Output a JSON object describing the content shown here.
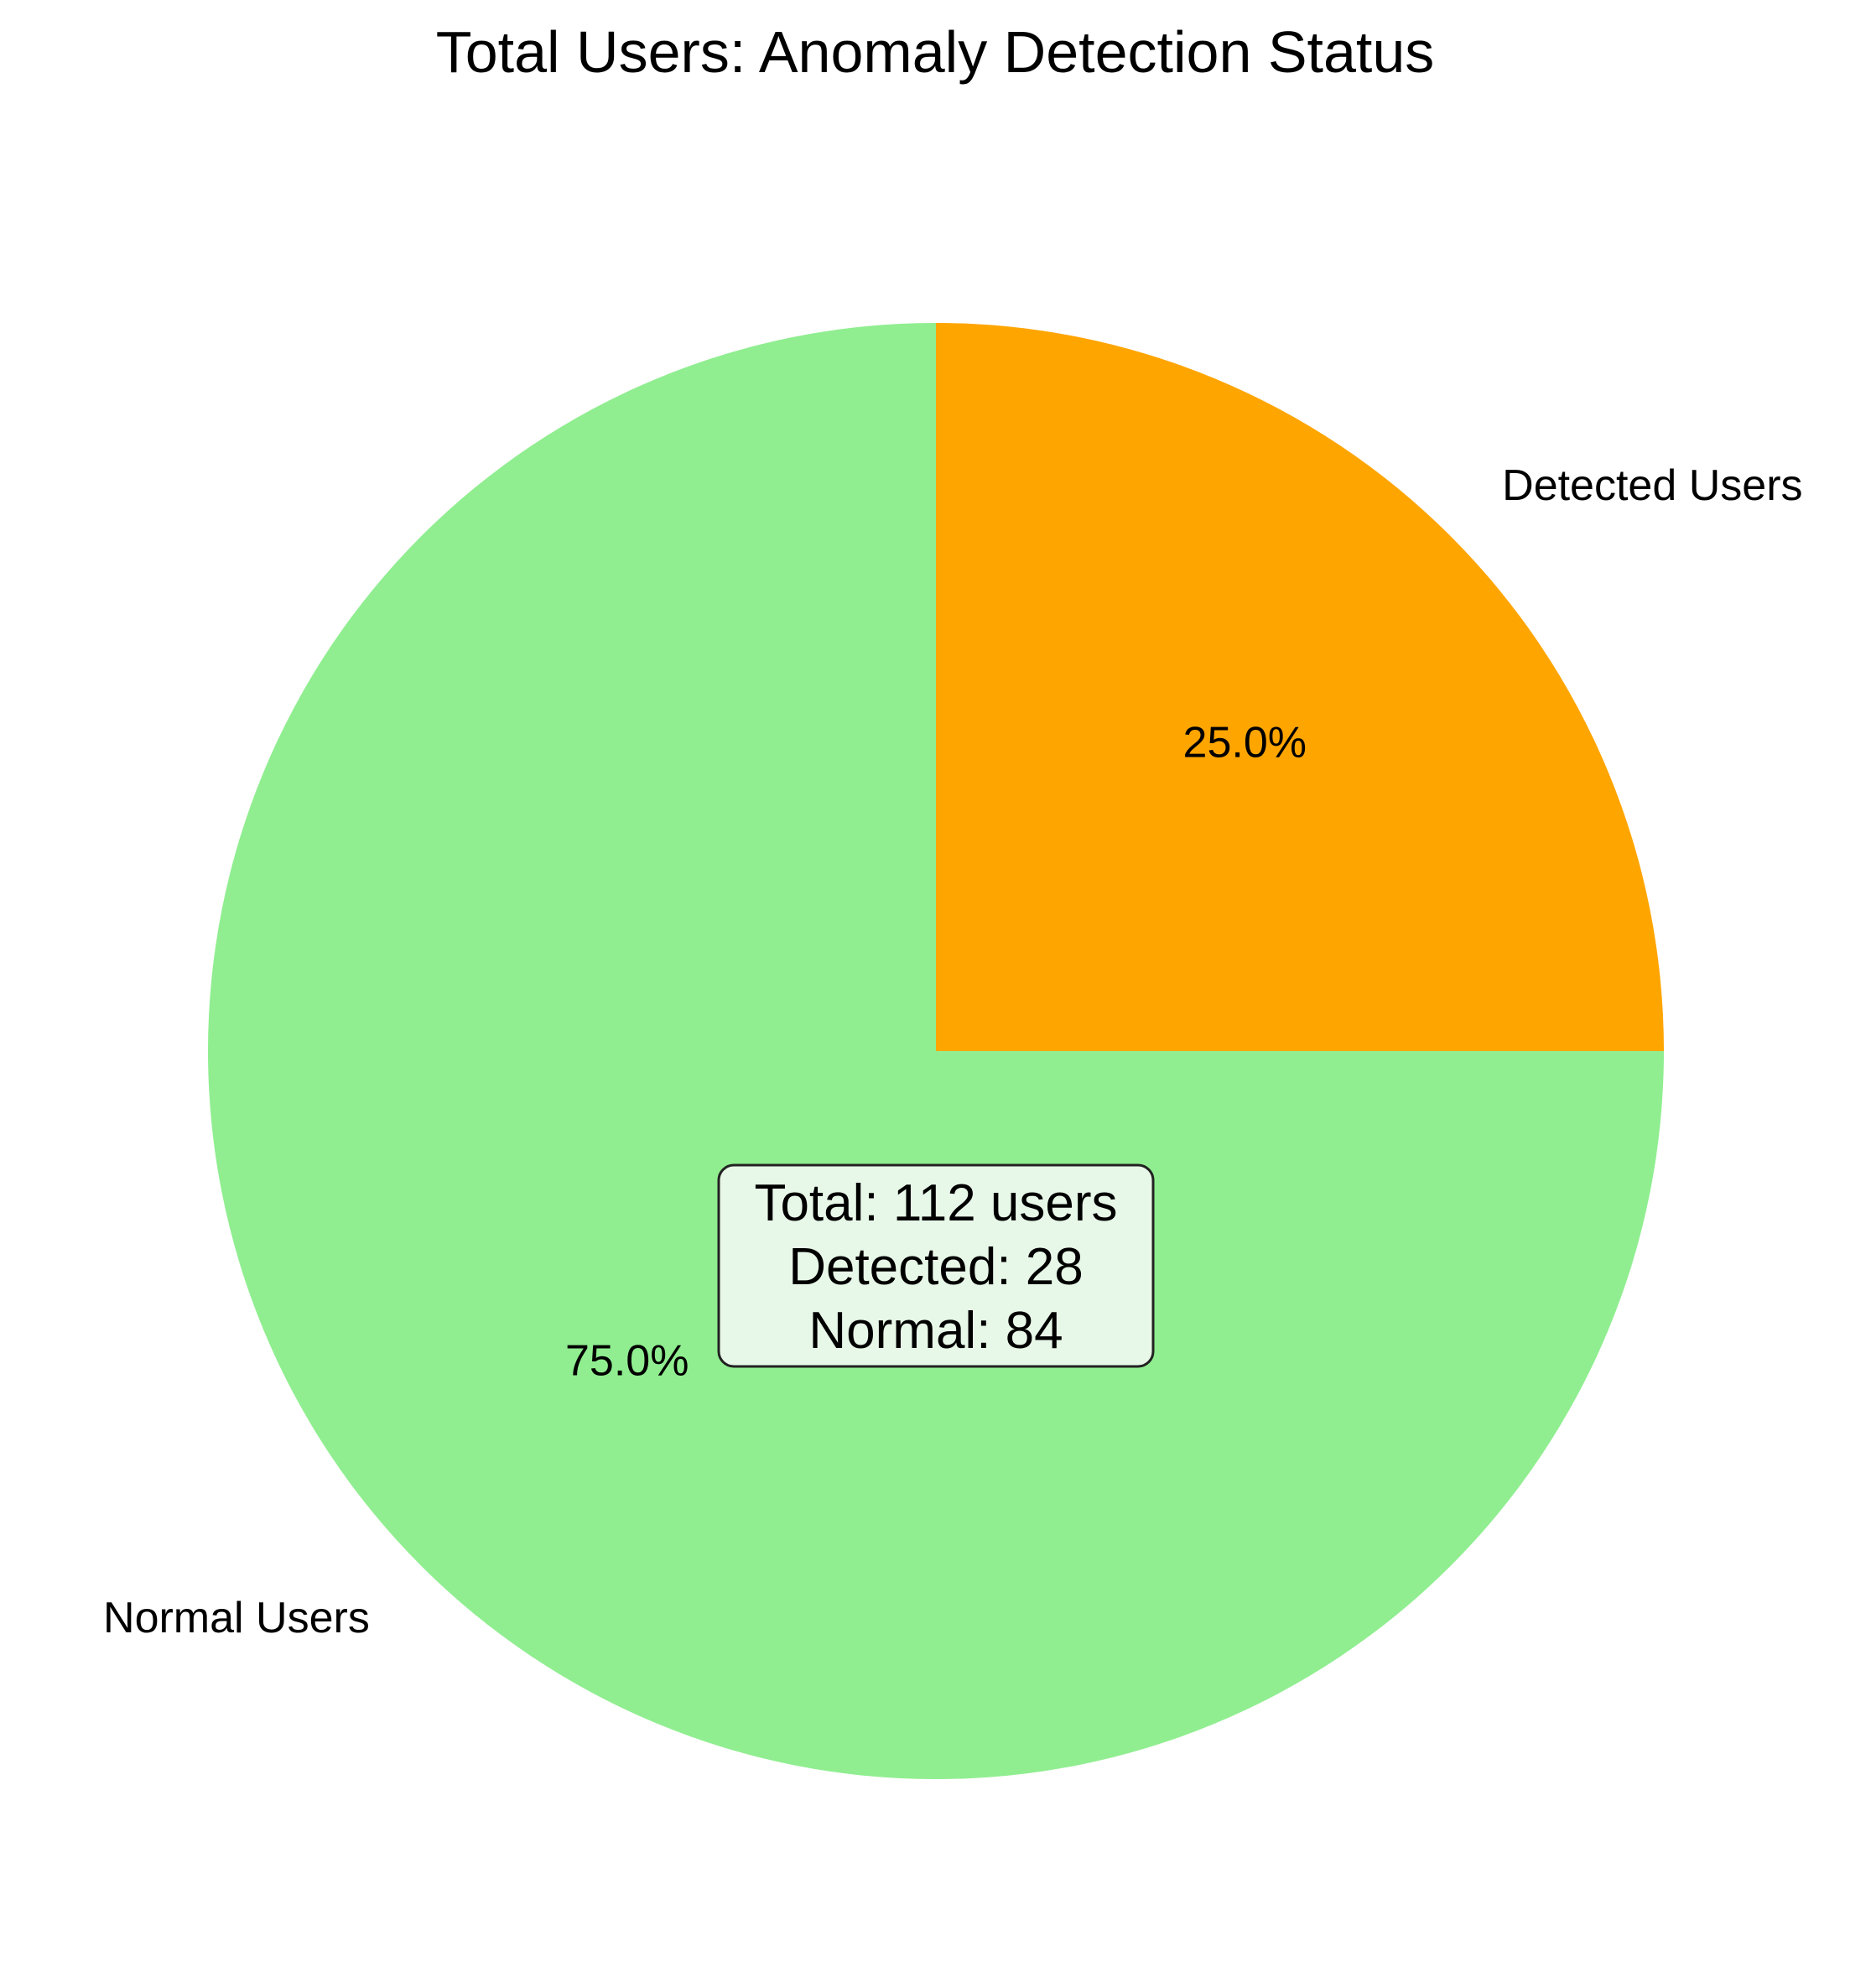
{
  "chart_data": {
    "type": "pie",
    "title": "Total Users: Anomaly Detection Status",
    "start_angle_deg": 90,
    "direction": "clockwise",
    "slices": [
      {
        "label": "Detected Users",
        "value": 28,
        "pct_label": "25.0%",
        "color": "#FFA500"
      },
      {
        "label": "Normal Users",
        "value": 84,
        "pct_label": "75.0%",
        "color": "#90EE90"
      }
    ],
    "summary_box": {
      "lines": [
        "Total: 112 users",
        "Detected: 28",
        "Normal: 84"
      ],
      "fill": "#E8F8E8",
      "border": "#222222"
    }
  }
}
